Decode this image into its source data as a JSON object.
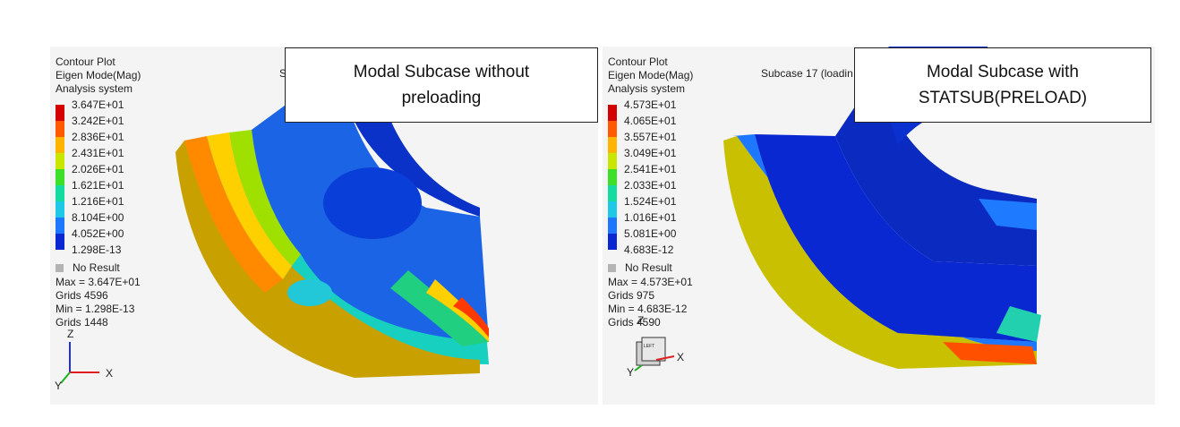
{
  "left_panel": {
    "title_lines": [
      "Contour Plot",
      "Eigen Mode(Mag)",
      "Analysis system"
    ],
    "legend": [
      {
        "value": "3.647E+01",
        "color": "#d40000"
      },
      {
        "value": "3.242E+01",
        "color": "#ff5a00"
      },
      {
        "value": "2.836E+01",
        "color": "#ffb400"
      },
      {
        "value": "2.431E+01",
        "color": "#c8e600"
      },
      {
        "value": "2.026E+01",
        "color": "#3ce028"
      },
      {
        "value": "1.621E+01",
        "color": "#14dca0"
      },
      {
        "value": "1.216E+01",
        "color": "#1ec8e6"
      },
      {
        "value": "8.104E+00",
        "color": "#1e78ff"
      },
      {
        "value": "4.052E+00",
        "color": "#0a28d2"
      },
      {
        "value": "1.298E-13",
        "color": ""
      }
    ],
    "no_result": "No Result",
    "stats": [
      "Max = 3.647E+01",
      "Grids 4596",
      "Min = 1.298E-13",
      "Grids 1448"
    ],
    "subcase": "S",
    "overlay_label": [
      "Modal Subcase without",
      "preloading"
    ],
    "axes": {
      "z": "Z",
      "x": "X",
      "y": "Y"
    }
  },
  "right_panel": {
    "title_lines": [
      "Contour Plot",
      "Eigen Mode(Mag)",
      "Analysis system"
    ],
    "legend": [
      {
        "value": "4.573E+01",
        "color": "#d40000"
      },
      {
        "value": "4.065E+01",
        "color": "#ff5a00"
      },
      {
        "value": "3.557E+01",
        "color": "#ffb400"
      },
      {
        "value": "3.049E+01",
        "color": "#c8e600"
      },
      {
        "value": "2.541E+01",
        "color": "#3ce028"
      },
      {
        "value": "2.033E+01",
        "color": "#14dca0"
      },
      {
        "value": "1.524E+01",
        "color": "#1ec8e6"
      },
      {
        "value": "1.016E+01",
        "color": "#1e78ff"
      },
      {
        "value": "5.081E+00",
        "color": "#0a28d2"
      },
      {
        "value": "4.683E-12",
        "color": ""
      }
    ],
    "no_result": "No Result",
    "stats": [
      "Max = 4.573E+01",
      "Grids 975",
      "Min = 4.683E-12",
      "Grids 4590"
    ],
    "subcase": "Subcase 17 (loadin",
    "overlay_label": [
      "Modal Subcase with",
      "STATSUB(PRELOAD)"
    ],
    "axes": {
      "z": "Z",
      "x": "X",
      "y": "Y"
    },
    "view_cube_face": "LEFT"
  }
}
